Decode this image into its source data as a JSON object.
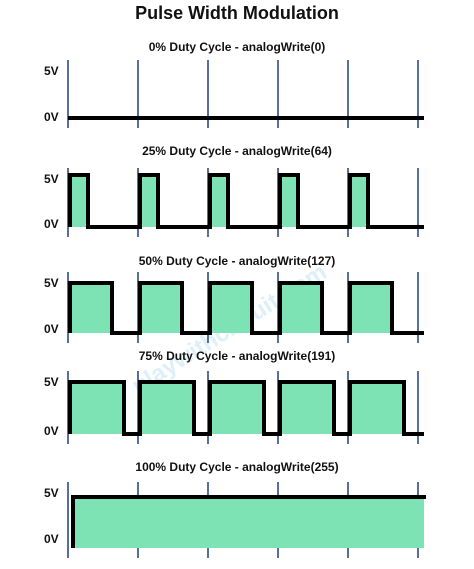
{
  "title": "Pulse Width Modulation",
  "watermark": "playwithcircuit.com",
  "panels": [
    {
      "caption": "0% Duty Cycle - analogWrite(0)",
      "high_label": "5V",
      "low_label": "0V"
    },
    {
      "caption": "25% Duty Cycle - analogWrite(64)",
      "high_label": "5V",
      "low_label": "0V"
    },
    {
      "caption": "50% Duty Cycle - analogWrite(127)",
      "high_label": "5V",
      "low_label": "0V"
    },
    {
      "caption": "75% Duty Cycle - analogWrite(191)",
      "high_label": "5V",
      "low_label": "0V"
    },
    {
      "caption": "100% Duty Cycle - analogWrite(255)",
      "high_label": "5V",
      "low_label": "0V"
    }
  ]
}
